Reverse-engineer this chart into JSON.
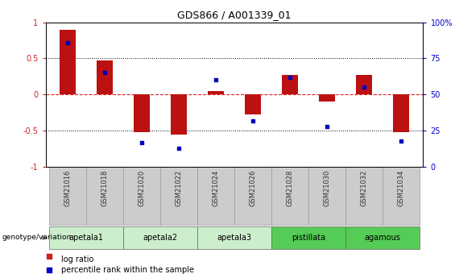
{
  "title": "GDS866 / A001339_01",
  "samples": [
    "GSM21016",
    "GSM21018",
    "GSM21020",
    "GSM21022",
    "GSM21024",
    "GSM21026",
    "GSM21028",
    "GSM21030",
    "GSM21032",
    "GSM21034"
  ],
  "log_ratio": [
    0.9,
    0.47,
    -0.52,
    -0.55,
    0.05,
    -0.27,
    0.27,
    -0.1,
    0.27,
    -0.52
  ],
  "percentile_rank": [
    86,
    65,
    17,
    13,
    60,
    32,
    62,
    28,
    55,
    18
  ],
  "group_defs": [
    {
      "start": 0,
      "end": 1,
      "name": "apetala1",
      "color": "#cceecc"
    },
    {
      "start": 2,
      "end": 3,
      "name": "apetala2",
      "color": "#cceecc"
    },
    {
      "start": 4,
      "end": 5,
      "name": "apetala3",
      "color": "#cceecc"
    },
    {
      "start": 6,
      "end": 7,
      "name": "pistillata",
      "color": "#55cc55"
    },
    {
      "start": 8,
      "end": 9,
      "name": "agamous",
      "color": "#55cc55"
    }
  ],
  "ylim_left": [
    -1,
    1
  ],
  "ylim_right": [
    0,
    100
  ],
  "yticks_left": [
    -1,
    -0.5,
    0,
    0.5,
    1
  ],
  "yticks_right": [
    0,
    25,
    50,
    75,
    100
  ],
  "bar_color": "#bb1111",
  "scatter_color": "#0000bb",
  "hline_color": "#dd2222",
  "left_axis_color": "#cc2222",
  "right_axis_color": "#0000cc",
  "sample_box_color": "#cccccc",
  "sample_box_edge": "#999999",
  "legend_red": "#cc2222",
  "legend_blue": "#0000cc"
}
